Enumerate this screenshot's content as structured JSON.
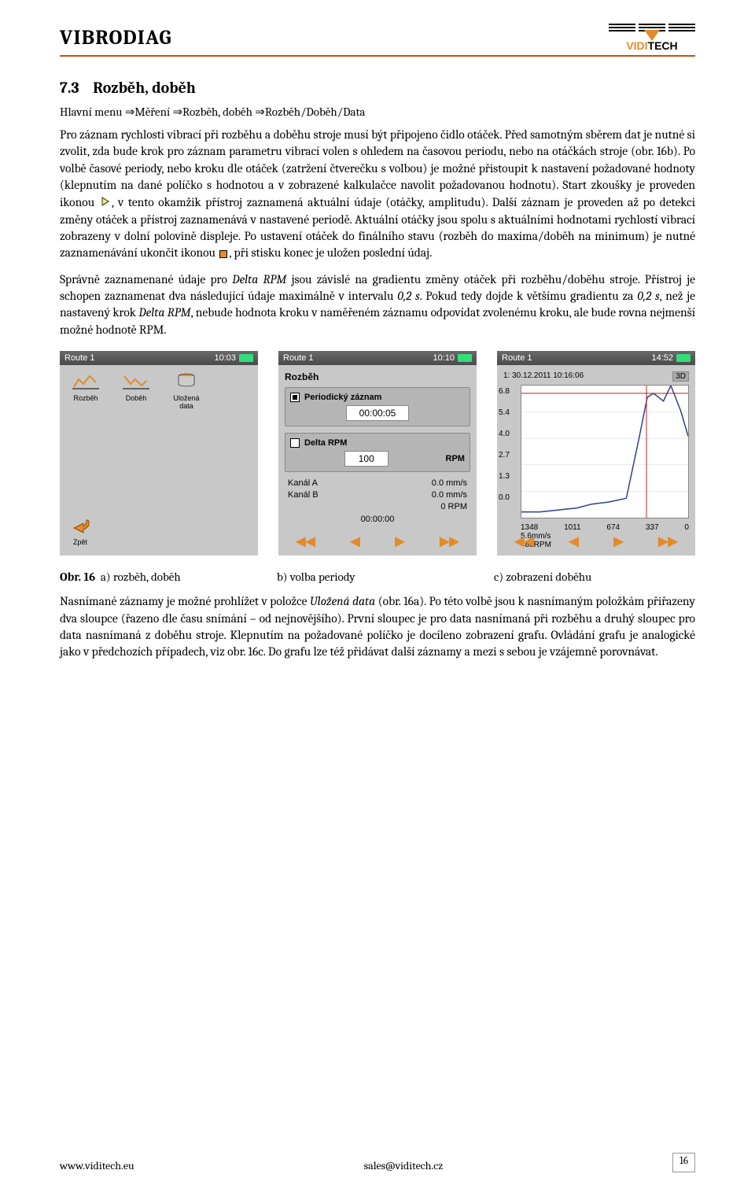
{
  "header": {
    "doc_title": "VIBRODIAG",
    "logo_upper": "VIDI",
    "logo_lower": "TECH"
  },
  "section": {
    "number": "7.3",
    "title": "Rozběh, doběh",
    "menu_path": "Hlavní menu ⇒Měření ⇒Rozběh, doběh ⇒Rozběh/Doběh/Data"
  },
  "paragraphs": {
    "p1": "Pro záznam rychlosti vibrací při rozběhu a doběhu stroje musí být připojeno čidlo otáček. Před samotným sběrem dat je nutné si zvolit, zda bude krok pro záznam parametru vibrací volen s ohledem na časovou periodu, nebo na otáčkách stroje (obr. 16b). Po volbě časové periody, nebo kroku dle otáček (zatržení čtverečku s volbou) je možné přistoupit k nastavení požadované hodnoty (klepnutím na dané políčko s hodnotou a v zobrazené kalkulačce navolit požadovanou hodnotu). Start zkoušky je proveden ikonou ",
    "p1b": ", v tento okamžik přístroj zaznamená aktuální údaje (otáčky, amplitudu). Další záznam je proveden až po detekci změny otáček a přístroj zaznamenává v nastavené periodě. Aktuální otáčky jsou spolu s aktuálními hodnotami rychlostí vibrací zobrazeny v dolní polovině displeje. Po ustavení otáček do finálního stavu (rozběh do maxima/doběh na minimum) je nutné zaznamenávání ukončit ikonou ",
    "p1c": ", při stisku konec je uložen poslední údaj.",
    "p2a": "Správně zaznamenané údaje pro ",
    "p2_em1": "Delta RPM",
    "p2b": " jsou závislé na gradientu změny otáček při rozběhu/doběhu stroje. Přístroj je schopen zaznamenat dva následující údaje maximálně v intervalu ",
    "p2_em2": "0,2 s",
    "p2c": ". Pokud tedy dojde k většímu gradientu za ",
    "p2_em3": "0,2 s",
    "p2d": ", než je nastavený krok ",
    "p2_em4": "Delta RPM",
    "p2e": ", nebude hodnota kroku v naměřeném záznamu odpovídat zvolenému kroku, ale bude rovna nejmenší možné hodnotě RPM.",
    "p3a": "Nasnímané záznamy je možné prohlížet v položce ",
    "p3_em1": "Uložená data",
    "p3b": " (obr. 16a). Po této volbě jsou k nasnímaným položkám přiřazeny dva sloupce (řazeno dle času snímání – od nejnovějšího). První sloupec je pro data nasnímaná při rozběhu a druhý sloupec pro data nasnímaná z doběhu stroje. Klepnutím na požadované políčko je docíleno zobrazení grafu. Ovládání grafu je analogické jako v předchozích případech, viz obr. 16c. Do grafu lze též přidávat další záznamy a mezi s sebou je vzájemně porovnávat."
  },
  "captions": {
    "prefix": "Obr. 16",
    "a": "a) rozběh, doběh",
    "b": "b) volba periody",
    "c": "c) zobrazení doběhu"
  },
  "screenshots": {
    "a": {
      "title": "Route 1",
      "time": "10:03",
      "icons": [
        {
          "label": "Rozběh"
        },
        {
          "label": "Doběh"
        },
        {
          "label": "Uložená data"
        }
      ],
      "back": "Zpět"
    },
    "b": {
      "title": "Route 1",
      "time": "10:10",
      "heading": "Rozběh",
      "opt_periodic": "Periodický záznam",
      "periodic_value": "00:00:05",
      "opt_delta": "Delta RPM",
      "delta_value": "100",
      "delta_unit": "RPM",
      "kanal_a": "Kanál A",
      "kanal_a_val": "0.0  mm/s",
      "kanal_b": "Kanál B",
      "kanal_b_val": "0.0  mm/s",
      "rpm_line": "0 RPM",
      "elapsed": "00:00:00"
    },
    "c": {
      "title": "Route 1",
      "time": "14:52",
      "timestamp": "1: 30.12.2011 10:16:06",
      "mode": "3D",
      "y_ticks": [
        "6.8",
        "5.4",
        "4.0",
        "2.7",
        "1.3",
        "0.0"
      ],
      "x_ticks": [
        "1348",
        "1011",
        "674",
        "337",
        "0"
      ],
      "y_unit": "5.6mm/s",
      "x_unit": "488RPM",
      "chart": {
        "type": "line",
        "background_color": "#ffffff",
        "grid_color": "#d5d5d5",
        "line_color": "#2b3c8f",
        "crosshair_color": "#c02020",
        "line_width": 1.5,
        "xlim": [
          1348,
          0
        ],
        "ylim": [
          0,
          6.8
        ],
        "points_x": [
          1348,
          1200,
          1050,
          900,
          780,
          650,
          500,
          400,
          330,
          280,
          200,
          140,
          60,
          0
        ],
        "points_y": [
          0.3,
          0.3,
          0.4,
          0.5,
          0.7,
          0.8,
          1.0,
          4.0,
          6.2,
          6.4,
          6.0,
          6.8,
          5.5,
          4.2
        ],
        "crosshair_x": 337,
        "crosshair_y": 6.4
      }
    }
  },
  "footer": {
    "url": "www.viditech.eu",
    "email": "sales@viditech.cz",
    "page": "16"
  },
  "colors": {
    "accent_orange": "#e38b2a",
    "header_rule": "#c15408",
    "line_blue": "#2b3c8f",
    "crosshair_red": "#c02020",
    "panel_grey": "#c8c8c8"
  }
}
